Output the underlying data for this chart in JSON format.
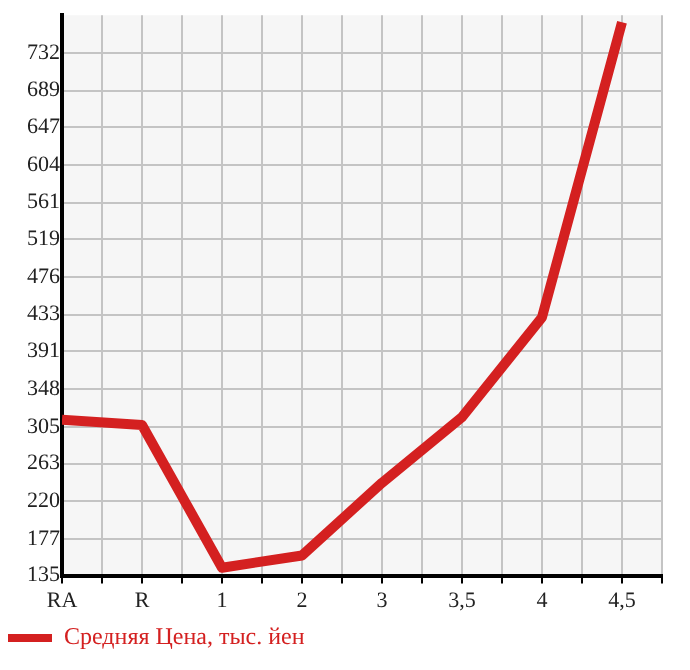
{
  "chart_data": {
    "type": "line",
    "categories": [
      "RA",
      "R",
      "1",
      "2",
      "3",
      "3,5",
      "4",
      "4,5"
    ],
    "series": [
      {
        "name": "Средняя Цена, тыс. йен",
        "color": "#d42020",
        "values": [
          313,
          307,
          144,
          158,
          241,
          316,
          430,
          767
        ]
      }
    ],
    "ylim": [
      135,
      775
    ],
    "yticks": [
      135,
      177,
      220,
      263,
      305,
      348,
      391,
      433,
      476,
      519,
      561,
      604,
      647,
      689,
      732
    ],
    "grid": true,
    "legend": "bottom left",
    "marker": "none",
    "line_style": "solid"
  }
}
